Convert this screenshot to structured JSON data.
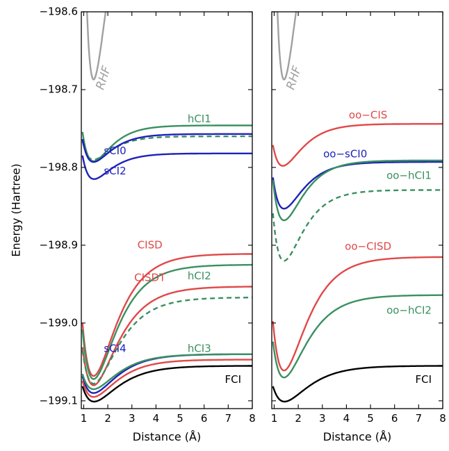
{
  "chart_data": [
    {
      "type": "line",
      "title": "",
      "xlabel": "Distance (Å)",
      "ylabel": "Energy (Hartree)",
      "xlim": [
        0.9,
        8.0
      ],
      "ylim": [
        -199.11,
        -198.6
      ],
      "xticks": [
        1,
        2,
        3,
        4,
        5,
        6,
        7,
        8
      ],
      "yticks": [
        -198.6,
        -198.7,
        -198.8,
        -198.9,
        -199.0,
        -199.1
      ],
      "ytick_labels": [
        "−198.6",
        "−198.7",
        "−198.8",
        "−198.9",
        "−199.0",
        "−199.1"
      ],
      "grid": false,
      "series": [
        {
          "name": "RHF",
          "color": "#a0a0a0",
          "dash": false,
          "min_x": 1.41,
          "min_e": -198.687,
          "asym": -198.4,
          "a": 1.6,
          "label_x": 1.83,
          "label_y": -198.685,
          "label_rotate": -72,
          "label_italic": true
        },
        {
          "name": "hCI1",
          "color": "#3a9060",
          "dash": false,
          "min_x": 1.41,
          "min_e": -198.792,
          "asym": -198.746,
          "a": 1.4,
          "label_x": 5.8,
          "label_y": -198.738
        },
        {
          "name": "",
          "color": "#3a9060",
          "dash": true,
          "min_x": 1.41,
          "min_e": -198.79,
          "asym": -198.76,
          "a": 1.4
        },
        {
          "name": "sCI0",
          "color": "#1e22bb",
          "dash": false,
          "min_x": 1.41,
          "min_e": -198.793,
          "asym": -198.757,
          "a": 1.4,
          "label_x": 2.3,
          "label_y": -198.779
        },
        {
          "name": "sCI2",
          "color": "#1e22bb",
          "dash": false,
          "min_x": 1.43,
          "min_e": -198.815,
          "asym": -198.782,
          "a": 1.4,
          "label_x": 2.3,
          "label_y": -198.805
        },
        {
          "name": "CISD",
          "color": "#e04848",
          "dash": false,
          "min_x": 1.41,
          "min_e": -199.068,
          "asym": -198.911,
          "a": 1.1,
          "label_x": 3.75,
          "label_y": -198.9
        },
        {
          "name": "hCI2",
          "color": "#3a9060",
          "dash": false,
          "min_x": 1.41,
          "min_e": -199.072,
          "asym": -198.925,
          "a": 1.1,
          "label_x": 5.8,
          "label_y": -198.94
        },
        {
          "name": "CISDT",
          "color": "#e04848",
          "dash": false,
          "min_x": 1.41,
          "min_e": -199.08,
          "asym": -198.953,
          "a": 1.05,
          "label_x": 3.75,
          "label_y": -198.942
        },
        {
          "name": "",
          "color": "#3a9060",
          "dash": true,
          "min_x": 1.41,
          "min_e": -199.078,
          "asym": -198.967,
          "a": 1.05
        },
        {
          "name": "sCI4",
          "color": "#1e22bb",
          "dash": false,
          "min_x": 1.41,
          "min_e": -199.09,
          "asym": -199.04,
          "a": 1.1,
          "label_x": 2.3,
          "label_y": -199.033
        },
        {
          "name": "hCI3",
          "color": "#3a9060",
          "dash": false,
          "min_x": 1.41,
          "min_e": -199.085,
          "asym": -199.04,
          "a": 1.1,
          "label_x": 5.8,
          "label_y": -199.033
        },
        {
          "name": "",
          "color": "#e04848",
          "dash": false,
          "min_x": 1.41,
          "min_e": -199.095,
          "asym": -199.047,
          "a": 1.1
        },
        {
          "name": "FCI",
          "color": "#000000",
          "dash": false,
          "min_x": 1.43,
          "min_e": -199.101,
          "asym": -199.055,
          "a": 1.05,
          "label_x": 7.2,
          "label_y": -199.073
        }
      ]
    },
    {
      "type": "line",
      "title": "",
      "xlabel": "Distance (Å)",
      "ylabel": "",
      "xlim": [
        0.9,
        8.0
      ],
      "ylim": [
        -199.11,
        -198.6
      ],
      "xticks": [
        1,
        2,
        3,
        4,
        5,
        6,
        7,
        8
      ],
      "yticks": [
        -198.6,
        -198.7,
        -198.8,
        -198.9,
        -199.0,
        -199.1
      ],
      "ytick_labels": [],
      "grid": false,
      "series": [
        {
          "name": "RHF",
          "color": "#a0a0a0",
          "dash": false,
          "min_x": 1.41,
          "min_e": -198.687,
          "asym": -198.4,
          "a": 1.6,
          "label_x": 1.83,
          "label_y": -198.685,
          "label_rotate": -72,
          "label_italic": true
        },
        {
          "name": "oo−CIS",
          "color": "#e04848",
          "dash": false,
          "min_x": 1.36,
          "min_e": -198.798,
          "asym": -198.744,
          "a": 1.3,
          "label_x": 4.9,
          "label_y": -198.733
        },
        {
          "name": "oo−sCI0",
          "color": "#1e22bb",
          "dash": false,
          "min_x": 1.41,
          "min_e": -198.853,
          "asym": -198.793,
          "a": 1.3,
          "label_x": 3.95,
          "label_y": -198.783
        },
        {
          "name": "oo−hCI1",
          "color": "#3a9060",
          "dash": false,
          "min_x": 1.41,
          "min_e": -198.868,
          "asym": -198.791,
          "a": 1.3,
          "label_x": 6.6,
          "label_y": -198.811
        },
        {
          "name": "",
          "color": "#3a9060",
          "dash": true,
          "min_x": 1.41,
          "min_e": -198.92,
          "asym": -198.829,
          "a": 1.3
        },
        {
          "name": "oo−CISD",
          "color": "#e04848",
          "dash": false,
          "min_x": 1.41,
          "min_e": -199.061,
          "asym": -198.915,
          "a": 1.1,
          "label_x": 4.9,
          "label_y": -198.902
        },
        {
          "name": "oo−hCI2",
          "color": "#3a9060",
          "dash": false,
          "min_x": 1.41,
          "min_e": -199.07,
          "asym": -198.964,
          "a": 1.1,
          "label_x": 6.6,
          "label_y": -198.984
        },
        {
          "name": "FCI",
          "color": "#000000",
          "dash": false,
          "min_x": 1.43,
          "min_e": -199.101,
          "asym": -199.055,
          "a": 1.05,
          "label_x": 7.2,
          "label_y": -199.073
        }
      ]
    }
  ]
}
